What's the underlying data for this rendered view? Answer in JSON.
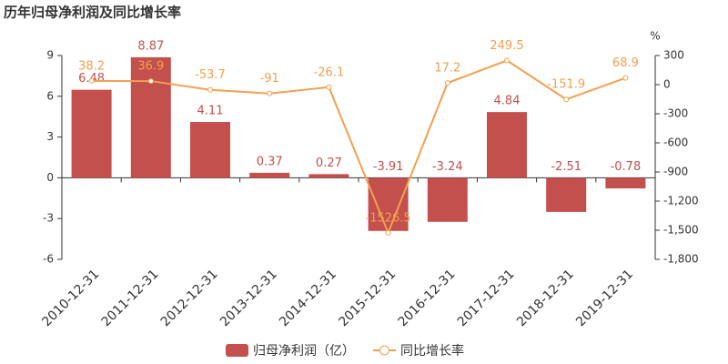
{
  "chart_data": {
    "type": "bar",
    "title": "历年归母净利润及同比增长率",
    "y2_label": "%",
    "categories": [
      "2010-12-31",
      "2011-12-31",
      "2012-12-31",
      "2013-12-31",
      "2014-12-31",
      "2015-12-31",
      "2016-12-31",
      "2017-12-31",
      "2018-12-31",
      "2019-12-31"
    ],
    "series": [
      {
        "name": "归母净利润（亿）",
        "type": "bar",
        "color": "#c4504e",
        "values": [
          6.48,
          8.87,
          4.11,
          0.37,
          0.27,
          -3.91,
          -3.24,
          4.84,
          -2.51,
          -0.78
        ]
      },
      {
        "name": "同比增长率",
        "type": "line",
        "axis": "y2",
        "color": "#f2a04f",
        "values": [
          38.2,
          36.9,
          -53.7,
          -91,
          -26.1,
          -1526.5,
          17.2,
          249.5,
          -151.9,
          68.9
        ]
      }
    ],
    "ylim": [
      -6,
      9
    ],
    "yticks": [
      -6,
      -3,
      0,
      3,
      6,
      9
    ],
    "y2lim": [
      -1800,
      300
    ],
    "y2ticks": [
      300,
      0,
      -300,
      -600,
      -900,
      {
        "value": -1200,
        "label": "-1,200"
      },
      {
        "value": -1500,
        "label": "-1,500"
      },
      {
        "value": -1800,
        "label": "-1,800"
      }
    ],
    "grid": false
  }
}
